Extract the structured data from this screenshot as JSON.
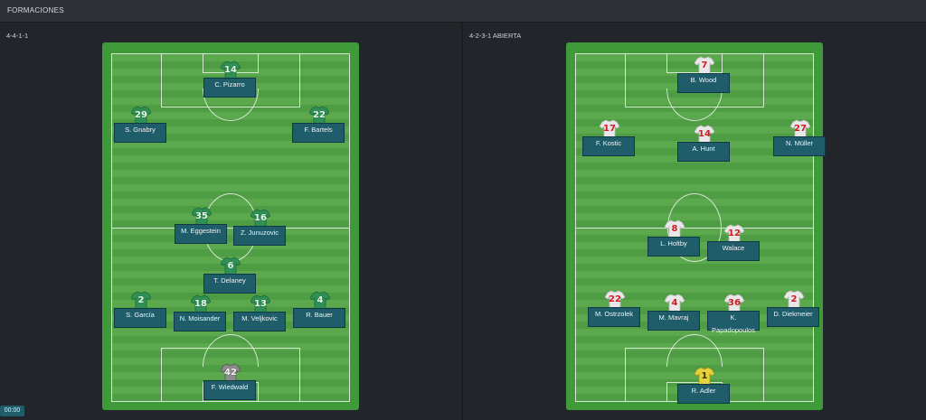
{
  "header": {
    "title": "FORMACIONES"
  },
  "clock": "00:00",
  "teams": {
    "left": {
      "formation": "4-4-1-1",
      "kit": "green",
      "kit_color": "#2f8f55",
      "keeper_kit_color": "#8c8c8c",
      "players": {
        "st": {
          "number": "14",
          "name": "C. Pizarro"
        },
        "lm": {
          "number": "29",
          "name": "S. Gnabry"
        },
        "rm": {
          "number": "22",
          "name": "F. Bartels"
        },
        "cm1": {
          "number": "35",
          "name": "M. Eggestein"
        },
        "cm2": {
          "number": "16",
          "name": "Z. Junuzovic"
        },
        "dm": {
          "number": "6",
          "name": "T. Delaney"
        },
        "lb": {
          "number": "2",
          "name": "S. García"
        },
        "cb1": {
          "number": "18",
          "name": "N. Moisander"
        },
        "cb2": {
          "number": "13",
          "name": "M. Veljkovic"
        },
        "rb": {
          "number": "4",
          "name": "R. Bauer"
        },
        "gk": {
          "number": "42",
          "name": "F. Wiedwald"
        }
      }
    },
    "right": {
      "formation": "4-2-3-1 ABIERTA",
      "kit": "white-red",
      "kit_color": "#e8e8e8",
      "keeper_kit_color": "#e6d23a",
      "players": {
        "st": {
          "number": "7",
          "name": "B. Wood"
        },
        "lw": {
          "number": "17",
          "name": "F. Kostic"
        },
        "am": {
          "number": "14",
          "name": "A. Hunt"
        },
        "rw": {
          "number": "27",
          "name": "N. Müller"
        },
        "cm1": {
          "number": "8",
          "name": "L. Holtby"
        },
        "cm2": {
          "number": "12",
          "name": "Walace"
        },
        "lb": {
          "number": "22",
          "name": "M. Ostrzolek"
        },
        "cb1": {
          "number": "4",
          "name": "M. Mavraj"
        },
        "cb2": {
          "number": "36",
          "name": "K. Papadopoulos"
        },
        "rb": {
          "number": "2",
          "name": "D. Diekmeier"
        },
        "gk": {
          "number": "1",
          "name": "R. Adler"
        }
      }
    }
  }
}
